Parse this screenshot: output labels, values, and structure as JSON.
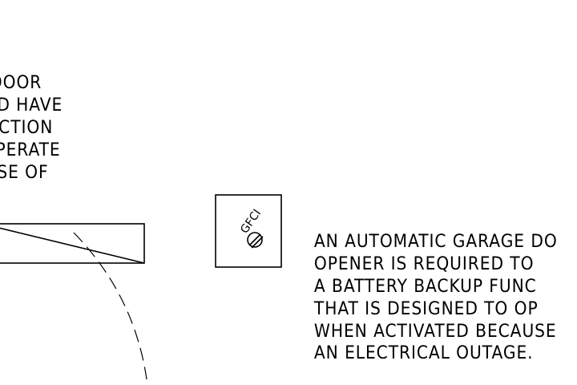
{
  "left_note": {
    "lines": [
      "DOOR",
      "D HAVE",
      "CTION",
      "PERATE",
      "SE OF"
    ]
  },
  "right_note": {
    "lines": [
      "AN AUTOMATIC GARAGE DO",
      "OPENER IS REQUIRED TO",
      "A BATTERY BACKUP FUNC",
      "THAT IS DESIGNED TO OP",
      "WHEN ACTIVATED BECAUSE",
      "AN ELECTRICAL OUTAGE."
    ]
  },
  "outlet": {
    "label": "GFCI"
  }
}
